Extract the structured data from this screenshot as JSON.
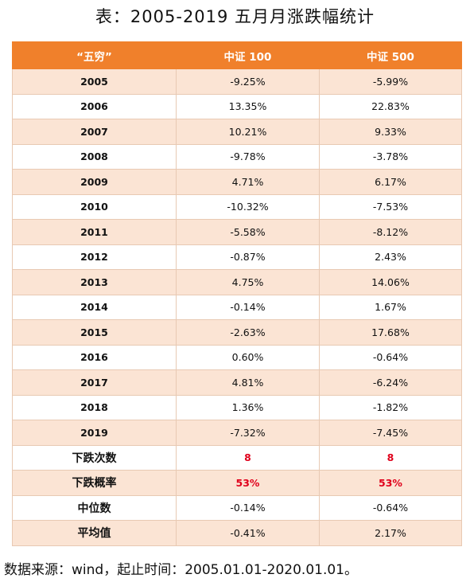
{
  "title": "表：2005-2019 五月月涨跌幅统计",
  "table": {
    "headers": [
      "“五穷”",
      "中证 100",
      "中证 500"
    ],
    "rows": [
      {
        "year": "2005",
        "csi100": "-9.25%",
        "csi500": "-5.99%"
      },
      {
        "year": "2006",
        "csi100": "13.35%",
        "csi500": "22.83%"
      },
      {
        "year": "2007",
        "csi100": "10.21%",
        "csi500": "9.33%"
      },
      {
        "year": "2008",
        "csi100": "-9.78%",
        "csi500": "-3.78%"
      },
      {
        "year": "2009",
        "csi100": "4.71%",
        "csi500": "6.17%"
      },
      {
        "year": "2010",
        "csi100": "-10.32%",
        "csi500": "-7.53%"
      },
      {
        "year": "2011",
        "csi100": "-5.58%",
        "csi500": "-8.12%"
      },
      {
        "year": "2012",
        "csi100": "-0.87%",
        "csi500": "2.43%"
      },
      {
        "year": "2013",
        "csi100": "4.75%",
        "csi500": "14.06%"
      },
      {
        "year": "2014",
        "csi100": "-0.14%",
        "csi500": "1.67%"
      },
      {
        "year": "2015",
        "csi100": "-2.63%",
        "csi500": "17.68%"
      },
      {
        "year": "2016",
        "csi100": "0.60%",
        "csi500": "-0.64%"
      },
      {
        "year": "2017",
        "csi100": "4.81%",
        "csi500": "-6.24%"
      },
      {
        "year": "2018",
        "csi100": "1.36%",
        "csi500": "-1.82%"
      },
      {
        "year": "2019",
        "csi100": "-7.32%",
        "csi500": "-7.45%"
      }
    ],
    "summary": [
      {
        "label": "下跌次数",
        "csi100": "8",
        "csi500": "8",
        "highlight": true
      },
      {
        "label": "下跌概率",
        "csi100": "53%",
        "csi500": "53%",
        "highlight": true
      },
      {
        "label": "中位数",
        "csi100": "-0.14%",
        "csi500": "-0.64%",
        "highlight": false
      },
      {
        "label": "平均值",
        "csi100": "-0.41%",
        "csi500": "2.17%",
        "highlight": false
      }
    ]
  },
  "colors": {
    "header_bg": "#f0802b",
    "stripe_bg": "#fbe4d4",
    "highlight_text": "#e0001b"
  },
  "source": "数据来源：wind，起止时间：2005.01.01-2020.01.01。"
}
